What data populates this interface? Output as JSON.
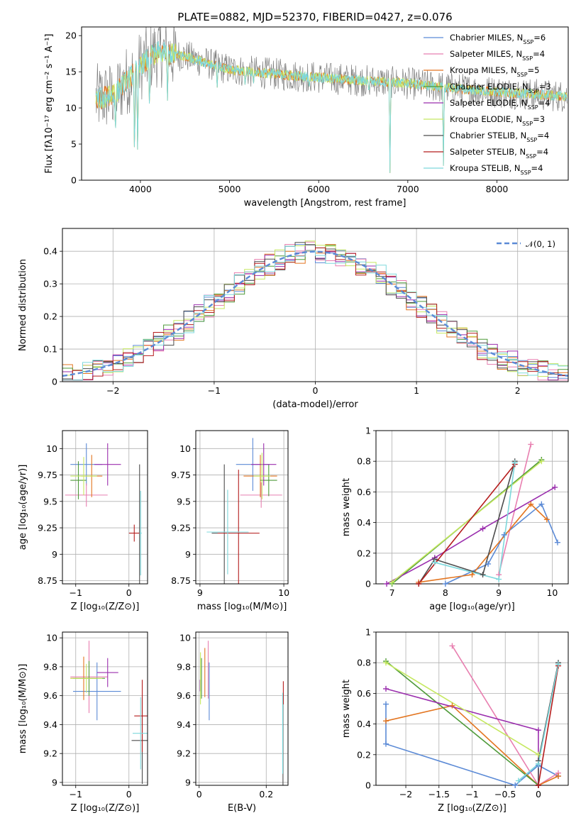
{
  "figure": {
    "title": "PLATE=0882, MJD=52370, FIBERID=0427, z=0.076"
  },
  "colors": {
    "Chabrier MILES": "#5b8ad6",
    "Salpeter MILES": "#e87fb0",
    "Kroupa MILES": "#e37520",
    "Chabrier ELODIE": "#4f9a3a",
    "Salpeter ELODIE": "#9b2fae",
    "Kroupa ELODIE": "#c5e860",
    "Chabrier STELIB": "#4d4d4d",
    "Salpeter STELIB": "#b51d1d",
    "Kroupa STELIB": "#7dd8dc",
    "data": "#7f7f7f",
    "normal_curve": "#5b8ad6"
  },
  "chart_data": [
    {
      "id": "spectrum",
      "type": "line",
      "xlabel": "wavelength [Angstrom, rest frame]",
      "ylabel": "Flux [fλ10⁻¹⁷ erg cm⁻² s⁻¹ A⁻¹]",
      "xlim": [
        3340,
        8800
      ],
      "ylim": [
        0,
        21.2
      ],
      "xticks": [
        4000,
        5000,
        6000,
        7000,
        8000
      ],
      "yticks": [
        0,
        5,
        10,
        15,
        20
      ],
      "grid": false,
      "legend_position": "top-right",
      "legend": [
        {
          "label": "Chabrier MILES, N",
          "sub": "SSP",
          "suffix": "=6",
          "series": "Chabrier MILES"
        },
        {
          "label": "Salpeter MILES, N",
          "sub": "SSP",
          "suffix": "=4",
          "series": "Salpeter MILES"
        },
        {
          "label": "Kroupa MILES, N",
          "sub": "SSP",
          "suffix": "=5",
          "series": "Kroupa MILES"
        },
        {
          "label": "Chabrier ELODIE, N",
          "sub": "SSP",
          "suffix": "=3",
          "series": "Chabrier ELODIE"
        },
        {
          "label": "Salpeter ELODIE, N",
          "sub": "SSP",
          "suffix": "=4",
          "series": "Salpeter ELODIE"
        },
        {
          "label": "Kroupa ELODIE, N",
          "sub": "SSP",
          "suffix": "=3",
          "series": "Kroupa ELODIE"
        },
        {
          "label": "Chabrier STELIB, N",
          "sub": "SSP",
          "suffix": "=4",
          "series": "Chabrier STELIB"
        },
        {
          "label": "Salpeter STELIB, N",
          "sub": "SSP",
          "suffix": "=4",
          "series": "Salpeter STELIB"
        },
        {
          "label": "Kroupa STELIB, N",
          "sub": "SSP",
          "suffix": "=4",
          "series": "Kroupa STELIB"
        }
      ],
      "continuum": [
        [
          3500,
          11.2
        ],
        [
          3700,
          11.8
        ],
        [
          3900,
          14.5
        ],
        [
          4000,
          15.8
        ],
        [
          4100,
          17.0
        ],
        [
          4200,
          17.8
        ],
        [
          4300,
          17.5
        ],
        [
          4500,
          17.2
        ],
        [
          4800,
          16.0
        ],
        [
          5000,
          15.3
        ],
        [
          5500,
          14.7
        ],
        [
          6000,
          14.2
        ],
        [
          6500,
          13.8
        ],
        [
          7000,
          13.4
        ],
        [
          7500,
          12.7
        ],
        [
          8000,
          12.2
        ],
        [
          8500,
          11.8
        ],
        [
          8800,
          11.6
        ]
      ],
      "absorption_lines": [
        [
          3720,
          6.0
        ],
        [
          3934,
          2.0
        ],
        [
          3969,
          3.0
        ],
        [
          4102,
          9.0
        ],
        [
          4304,
          11.0
        ],
        [
          4861,
          12.5
        ],
        [
          5175,
          13.0
        ],
        [
          5270,
          13.4
        ],
        [
          5893,
          12.8
        ],
        [
          6563,
          12.0
        ],
        [
          6800,
          1.0
        ],
        [
          7400,
          2.0
        ]
      ]
    },
    {
      "id": "residuals",
      "type": "histogram",
      "xlabel": "(data-model)/error",
      "ylabel": "Normed distribution",
      "xlim": [
        -2.5,
        2.5
      ],
      "ylim": [
        0,
        0.47
      ],
      "xticks": [
        -2,
        -1,
        0,
        1,
        2
      ],
      "yticks": [
        0.0,
        0.1,
        0.2,
        0.3,
        0.4
      ],
      "grid": true,
      "legend_position": "top-right",
      "legend": [
        {
          "label": "𝒩(0, 1)",
          "series": "normal_curve",
          "style": "dashed"
        }
      ],
      "bin_width": 0.1
    },
    {
      "id": "age-vs-Z",
      "type": "errorbar",
      "xlabel": "Z [log₁₀(Z/Z⊙)]",
      "ylabel": "age  [log₁₀(age/yr)]",
      "xlim": [
        -1.25,
        0.35
      ],
      "ylim": [
        8.72,
        10.17
      ],
      "xticks": [
        -1,
        0
      ],
      "yticks": [
        8.75,
        9.0,
        9.25,
        9.5,
        9.75,
        10.0
      ],
      "grid": true,
      "points": [
        {
          "series": "Chabrier MILES",
          "x": -0.8,
          "xerr": 0.3,
          "y": 9.85,
          "yerr": 0.2
        },
        {
          "series": "Salpeter MILES",
          "x": -0.8,
          "xerr": 0.4,
          "y": 9.56,
          "yerr": 0.11
        },
        {
          "series": "Kroupa MILES",
          "x": -0.7,
          "xerr": 0.2,
          "y": 9.74,
          "yerr": 0.2
        },
        {
          "series": "Chabrier ELODIE",
          "x": -0.95,
          "xerr": 0.15,
          "y": 9.7,
          "yerr": 0.18
        },
        {
          "series": "Salpeter ELODIE",
          "x": -0.4,
          "xerr": 0.25,
          "y": 9.85,
          "yerr": 0.2
        },
        {
          "series": "Kroupa ELODIE",
          "x": -0.85,
          "xerr": 0.25,
          "y": 9.74,
          "yerr": 0.18
        },
        {
          "series": "Chabrier STELIB",
          "x": 0.2,
          "xerr": 0.02,
          "y": 9.2,
          "yerr": 0.65
        },
        {
          "series": "Salpeter STELIB",
          "x": 0.1,
          "xerr": 0.1,
          "y": 9.2,
          "yerr": 0.08
        },
        {
          "series": "Kroupa STELIB",
          "x": 0.22,
          "xerr": 0.02,
          "y": 9.2,
          "yerr": 0.4
        }
      ]
    },
    {
      "id": "age-vs-mass",
      "type": "errorbar",
      "xlabel": "mass [log₁₀(M/M⊙)]",
      "ylabel": "",
      "xlim": [
        8.95,
        10.05
      ],
      "ylim": [
        8.72,
        10.17
      ],
      "xticks": [
        9,
        10
      ],
      "yticks": [
        8.75,
        9.0,
        9.25,
        9.5,
        9.75,
        10.0
      ],
      "grid": true,
      "points": [
        {
          "series": "Chabrier MILES",
          "x": 9.63,
          "xerr": 0.2,
          "y": 9.85,
          "yerr": 0.25
        },
        {
          "series": "Salpeter MILES",
          "x": 9.73,
          "xerr": 0.25,
          "y": 9.56,
          "yerr": 0.12
        },
        {
          "series": "Kroupa MILES",
          "x": 9.72,
          "xerr": 0.2,
          "y": 9.74,
          "yerr": 0.2
        },
        {
          "series": "Chabrier ELODIE",
          "x": 9.82,
          "xerr": 0.1,
          "y": 9.7,
          "yerr": 0.15
        },
        {
          "series": "Salpeter ELODIE",
          "x": 9.76,
          "xerr": 0.15,
          "y": 9.85,
          "yerr": 0.2
        },
        {
          "series": "Kroupa ELODIE",
          "x": 9.74,
          "xerr": 0.1,
          "y": 9.74,
          "yerr": 0.22
        },
        {
          "series": "Chabrier STELIB",
          "x": 9.29,
          "xerr": 0.15,
          "y": 9.2,
          "yerr": 0.65
        },
        {
          "series": "Salpeter STELIB",
          "x": 9.46,
          "xerr": 0.25,
          "y": 9.2,
          "yerr": 0.6
        },
        {
          "series": "Kroupa STELIB",
          "x": 9.33,
          "xerr": 0.25,
          "y": 9.21,
          "yerr": 0.4
        }
      ]
    },
    {
      "id": "weight-vs-age",
      "type": "line",
      "xlabel": "age  [log₁₀(age/yr)]",
      "ylabel": "mass weight",
      "xlim": [
        6.7,
        10.3
      ],
      "ylim": [
        0,
        1.0
      ],
      "xticks": [
        7,
        8,
        9,
        10
      ],
      "yticks": [
        0.0,
        0.2,
        0.4,
        0.6,
        0.8,
        1.0
      ],
      "grid": true,
      "series": [
        {
          "name": "Chabrier MILES",
          "x": [
            8.0,
            8.8,
            9.1,
            9.8,
            10.1
          ],
          "y": [
            0.0,
            0.13,
            0.32,
            0.52,
            0.27
          ]
        },
        {
          "name": "Salpeter MILES",
          "x": [
            9.0,
            9.6
          ],
          "y": [
            0.06,
            0.91
          ]
        },
        {
          "name": "Kroupa MILES",
          "x": [
            7.5,
            8.5,
            9.6,
            9.9
          ],
          "y": [
            0.01,
            0.06,
            0.52,
            0.42
          ]
        },
        {
          "name": "Chabrier ELODIE",
          "x": [
            7.0,
            9.8
          ],
          "y": [
            0.0,
            0.81
          ]
        },
        {
          "name": "Salpeter ELODIE",
          "x": [
            6.9,
            7.8,
            8.7,
            10.05
          ],
          "y": [
            0.0,
            0.17,
            0.36,
            0.63
          ]
        },
        {
          "name": "Kroupa ELODIE",
          "x": [
            7.0,
            9.8
          ],
          "y": [
            0.01,
            0.8
          ]
        },
        {
          "name": "Chabrier STELIB",
          "x": [
            7.5,
            7.8,
            8.7,
            9.3
          ],
          "y": [
            0.0,
            0.16,
            0.06,
            0.8
          ]
        },
        {
          "name": "Salpeter STELIB",
          "x": [
            7.5,
            9.3
          ],
          "y": [
            0.0,
            0.78
          ]
        },
        {
          "name": "Kroupa STELIB",
          "x": [
            7.8,
            9.0,
            9.3
          ],
          "y": [
            0.14,
            0.03,
            0.79
          ]
        }
      ]
    },
    {
      "id": "mass-vs-Z",
      "type": "errorbar",
      "xlabel": "Z [log₁₀(Z/Z⊙)]",
      "ylabel": "mass [log₁₀(M/M⊙)]",
      "xlim": [
        -1.25,
        0.35
      ],
      "ylim": [
        8.98,
        10.04
      ],
      "xticks": [
        -1,
        0
      ],
      "yticks": [
        9.0,
        9.2,
        9.4,
        9.6,
        9.8,
        10.0
      ],
      "grid": true,
      "points": [
        {
          "series": "Chabrier MILES",
          "x": -0.6,
          "xerr": 0.45,
          "y": 9.63,
          "yerr": 0.2
        },
        {
          "series": "Salpeter MILES",
          "x": -0.75,
          "xerr": 0.35,
          "y": 9.73,
          "yerr": 0.25
        },
        {
          "series": "Kroupa MILES",
          "x": -0.85,
          "xerr": 0.25,
          "y": 9.72,
          "yerr": 0.15
        },
        {
          "series": "Chabrier ELODIE",
          "x": -0.75,
          "xerr": 0.3,
          "y": 9.72,
          "yerr": 0.12
        },
        {
          "series": "Salpeter ELODIE",
          "x": -0.4,
          "xerr": 0.2,
          "y": 9.76,
          "yerr": 0.1
        },
        {
          "series": "Kroupa ELODIE",
          "x": -0.8,
          "xerr": 0.3,
          "y": 9.72,
          "yerr": 0.1
        },
        {
          "series": "Chabrier STELIB",
          "x": 0.25,
          "xerr": 0.2,
          "y": 9.29,
          "yerr": 0.3
        },
        {
          "series": "Salpeter STELIB",
          "x": 0.25,
          "xerr": 0.15,
          "y": 9.46,
          "yerr": 0.25
        },
        {
          "series": "Kroupa STELIB",
          "x": 0.22,
          "xerr": 0.15,
          "y": 9.34,
          "yerr": 0.25
        }
      ]
    },
    {
      "id": "mass-vs-ebv",
      "type": "errorbar",
      "xlabel": "E(B-V)",
      "ylabel": "",
      "xlim": [
        -0.01,
        0.265
      ],
      "ylim": [
        8.98,
        10.04
      ],
      "xticks": [
        0.0,
        0.2
      ],
      "yticks": [
        9.0,
        9.2,
        9.4,
        9.6,
        9.8,
        10.0
      ],
      "grid": true,
      "points": [
        {
          "series": "Chabrier MILES",
          "x": 0.03,
          "xerr": 0,
          "y": 9.63,
          "yerr": 0.2
        },
        {
          "series": "Salpeter MILES",
          "x": 0.027,
          "xerr": 0,
          "y": 9.78,
          "yerr": 0.2
        },
        {
          "series": "Kroupa MILES",
          "x": 0.017,
          "xerr": 0,
          "y": 9.76,
          "yerr": 0.17
        },
        {
          "series": "Chabrier ELODIE",
          "x": 0.007,
          "xerr": 0,
          "y": 9.72,
          "yerr": 0.14
        },
        {
          "series": "Salpeter ELODIE",
          "x": 0.003,
          "xerr": 0,
          "y": 9.67,
          "yerr": 0.04
        },
        {
          "series": "Kroupa ELODIE",
          "x": 0.004,
          "xerr": 0,
          "y": 9.72,
          "yerr": 0.18
        },
        {
          "series": "Chabrier STELIB",
          "x": 0.25,
          "xerr": 0,
          "y": 9.29,
          "yerr": 0.32
        },
        {
          "series": "Salpeter STELIB",
          "x": 0.251,
          "xerr": 0,
          "y": 9.62,
          "yerr": 0.08
        },
        {
          "series": "Kroupa STELIB",
          "x": 0.249,
          "xerr": 0,
          "y": 9.34,
          "yerr": 0.28
        }
      ]
    },
    {
      "id": "weight-vs-Z",
      "type": "line",
      "xlabel": "Z [log₁₀(Z/Z⊙)]",
      "ylabel": "mass weight",
      "xlim": [
        -2.45,
        0.45
      ],
      "ylim": [
        0,
        1.0
      ],
      "xticks": [
        -2.0,
        -1.5,
        -1.0,
        -0.5,
        0.0
      ],
      "yticks": [
        0.0,
        0.2,
        0.4,
        0.6,
        0.8,
        1.0
      ],
      "grid": true,
      "series": [
        {
          "name": "Chabrier MILES",
          "x": [
            -2.3,
            -2.3,
            -0.35,
            0.0,
            0.3
          ],
          "y": [
            0.53,
            0.27,
            0.0,
            0.13,
            0.06
          ]
        },
        {
          "name": "Salpeter MILES",
          "x": [
            -1.3,
            0.0,
            0.3
          ],
          "y": [
            0.91,
            0.0,
            0.08
          ]
        },
        {
          "name": "Kroupa MILES",
          "x": [
            -2.3,
            -1.3,
            0.0,
            0.3
          ],
          "y": [
            0.42,
            0.52,
            0.0,
            0.06
          ]
        },
        {
          "name": "Chabrier ELODIE",
          "x": [
            -2.3,
            0.0
          ],
          "y": [
            0.81,
            0.0
          ]
        },
        {
          "name": "Salpeter ELODIE",
          "x": [
            -2.3,
            0.0,
            0.0
          ],
          "y": [
            0.63,
            0.36,
            0.0
          ]
        },
        {
          "name": "Kroupa ELODIE",
          "x": [
            -2.3,
            0.0
          ],
          "y": [
            0.8,
            0.2
          ]
        },
        {
          "name": "Chabrier STELIB",
          "x": [
            0.0,
            0.0,
            0.3
          ],
          "y": [
            0.0,
            0.16,
            0.8
          ]
        },
        {
          "name": "Salpeter STELIB",
          "x": [
            0.0,
            0.3
          ],
          "y": [
            0.0,
            0.78
          ]
        },
        {
          "name": "Kroupa STELIB",
          "x": [
            -0.3,
            0.0,
            0.3
          ],
          "y": [
            0.03,
            0.14,
            0.79
          ]
        }
      ]
    }
  ]
}
